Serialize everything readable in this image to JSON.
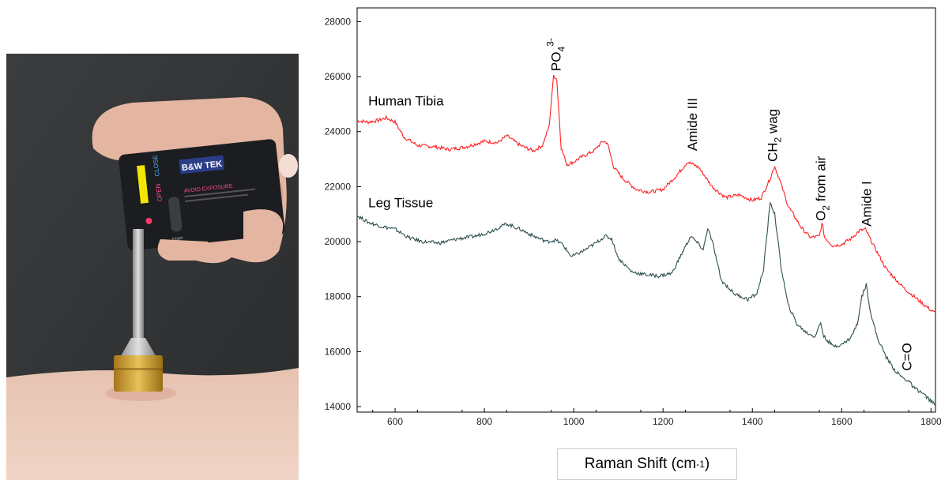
{
  "photo": {
    "device_brand": "B&W TEK",
    "device_warning": "AVOID EXPOSURE",
    "label_open": "OPEN",
    "label_close": "CLOSE",
    "label_trigger": "trigger",
    "button_color": "#f2e600"
  },
  "chart_data": {
    "type": "line",
    "xlabel_main": "Raman Shift (cm",
    "xlabel_sup": "-1",
    "xlabel_end": ")",
    "xlim": [
      515,
      1810
    ],
    "ylim": [
      13800,
      28500
    ],
    "xticks": [
      600,
      800,
      1000,
      1200,
      1400,
      1600,
      1800
    ],
    "yticks": [
      14000,
      16000,
      18000,
      20000,
      22000,
      24000,
      26000,
      28000
    ],
    "series": [
      {
        "name": "Human Tibia",
        "color": "#ff2020",
        "points": [
          [
            515,
            24400
          ],
          [
            540,
            24350
          ],
          [
            560,
            24400
          ],
          [
            580,
            24500
          ],
          [
            600,
            24350
          ],
          [
            620,
            23800
          ],
          [
            650,
            23500
          ],
          [
            690,
            23450
          ],
          [
            720,
            23350
          ],
          [
            760,
            23450
          ],
          [
            800,
            23650
          ],
          [
            830,
            23600
          ],
          [
            850,
            23850
          ],
          [
            880,
            23500
          ],
          [
            910,
            23300
          ],
          [
            930,
            23500
          ],
          [
            945,
            24200
          ],
          [
            955,
            26050
          ],
          [
            962,
            25900
          ],
          [
            972,
            23400
          ],
          [
            985,
            22800
          ],
          [
            1000,
            22900
          ],
          [
            1020,
            23100
          ],
          [
            1045,
            23300
          ],
          [
            1065,
            23650
          ],
          [
            1075,
            23600
          ],
          [
            1090,
            22700
          ],
          [
            1110,
            22300
          ],
          [
            1140,
            21900
          ],
          [
            1170,
            21800
          ],
          [
            1200,
            21900
          ],
          [
            1230,
            22400
          ],
          [
            1255,
            22900
          ],
          [
            1280,
            22700
          ],
          [
            1310,
            22000
          ],
          [
            1340,
            21600
          ],
          [
            1370,
            21700
          ],
          [
            1400,
            21500
          ],
          [
            1420,
            21600
          ],
          [
            1440,
            22300
          ],
          [
            1450,
            22750
          ],
          [
            1462,
            22200
          ],
          [
            1480,
            21300
          ],
          [
            1510,
            20500
          ],
          [
            1530,
            20150
          ],
          [
            1550,
            20200
          ],
          [
            1556,
            20650
          ],
          [
            1562,
            20150
          ],
          [
            1580,
            19850
          ],
          [
            1600,
            19900
          ],
          [
            1620,
            20100
          ],
          [
            1640,
            20400
          ],
          [
            1653,
            20450
          ],
          [
            1670,
            19900
          ],
          [
            1700,
            19000
          ],
          [
            1740,
            18300
          ],
          [
            1770,
            17900
          ],
          [
            1800,
            17500
          ],
          [
            1810,
            17400
          ]
        ]
      },
      {
        "name": "Leg Tissue",
        "color": "#2f4f4f",
        "points": [
          [
            515,
            20950
          ],
          [
            540,
            20700
          ],
          [
            570,
            20550
          ],
          [
            600,
            20450
          ],
          [
            630,
            20150
          ],
          [
            660,
            20000
          ],
          [
            700,
            19950
          ],
          [
            740,
            20100
          ],
          [
            780,
            20200
          ],
          [
            810,
            20350
          ],
          [
            850,
            20650
          ],
          [
            880,
            20450
          ],
          [
            910,
            20200
          ],
          [
            940,
            20000
          ],
          [
            960,
            20050
          ],
          [
            975,
            19900
          ],
          [
            995,
            19450
          ],
          [
            1020,
            19650
          ],
          [
            1050,
            19950
          ],
          [
            1070,
            20200
          ],
          [
            1085,
            20100
          ],
          [
            1100,
            19400
          ],
          [
            1130,
            18900
          ],
          [
            1160,
            18800
          ],
          [
            1190,
            18750
          ],
          [
            1220,
            18850
          ],
          [
            1240,
            19500
          ],
          [
            1262,
            20200
          ],
          [
            1280,
            19900
          ],
          [
            1290,
            19700
          ],
          [
            1300,
            20500
          ],
          [
            1312,
            19900
          ],
          [
            1330,
            18600
          ],
          [
            1360,
            18100
          ],
          [
            1390,
            17900
          ],
          [
            1410,
            18100
          ],
          [
            1425,
            19000
          ],
          [
            1440,
            21450
          ],
          [
            1450,
            21000
          ],
          [
            1465,
            19000
          ],
          [
            1480,
            17700
          ],
          [
            1500,
            17000
          ],
          [
            1520,
            16700
          ],
          [
            1540,
            16550
          ],
          [
            1553,
            17050
          ],
          [
            1560,
            16550
          ],
          [
            1580,
            16200
          ],
          [
            1600,
            16250
          ],
          [
            1620,
            16500
          ],
          [
            1635,
            17000
          ],
          [
            1645,
            18000
          ],
          [
            1655,
            18450
          ],
          [
            1665,
            17400
          ],
          [
            1680,
            16500
          ],
          [
            1700,
            15800
          ],
          [
            1720,
            15300
          ],
          [
            1740,
            15000
          ],
          [
            1750,
            14950
          ],
          [
            1760,
            14700
          ],
          [
            1780,
            14500
          ],
          [
            1800,
            14200
          ],
          [
            1810,
            14050
          ]
        ]
      }
    ],
    "annotations": [
      {
        "id": "po4",
        "main": "PO",
        "sub": "4",
        "sup": "3-",
        "rest": "",
        "x": 960,
        "y": 26200,
        "rotate": true
      },
      {
        "id": "amide3",
        "main": "Amide III",
        "sub": "",
        "sup": "",
        "rest": "",
        "x": 1265,
        "y": 23300,
        "rotate": true
      },
      {
        "id": "ch2",
        "main": "CH",
        "sub": "2",
        "sup": "",
        "rest": " wag",
        "x": 1445,
        "y": 22900,
        "rotate": true
      },
      {
        "id": "o2",
        "main": "O",
        "sub": "2",
        "sup": "",
        "rest": " from air",
        "x": 1553,
        "y": 20750,
        "rotate": true
      },
      {
        "id": "amide1",
        "main": "Amide I",
        "sub": "",
        "sup": "",
        "rest": "",
        "x": 1655,
        "y": 20550,
        "rotate": true
      },
      {
        "id": "co",
        "main": "C=O",
        "sub": "",
        "sup": "",
        "rest": "",
        "x": 1745,
        "y": 15300,
        "rotate": true
      },
      {
        "id": "tibia",
        "main": "Human Tibia",
        "sub": "",
        "sup": "",
        "rest": "",
        "x": 540,
        "y": 24950,
        "rotate": false
      },
      {
        "id": "leg",
        "main": "Leg Tissue",
        "sub": "",
        "sup": "",
        "rest": "",
        "x": 540,
        "y": 21250,
        "rotate": false
      }
    ]
  }
}
